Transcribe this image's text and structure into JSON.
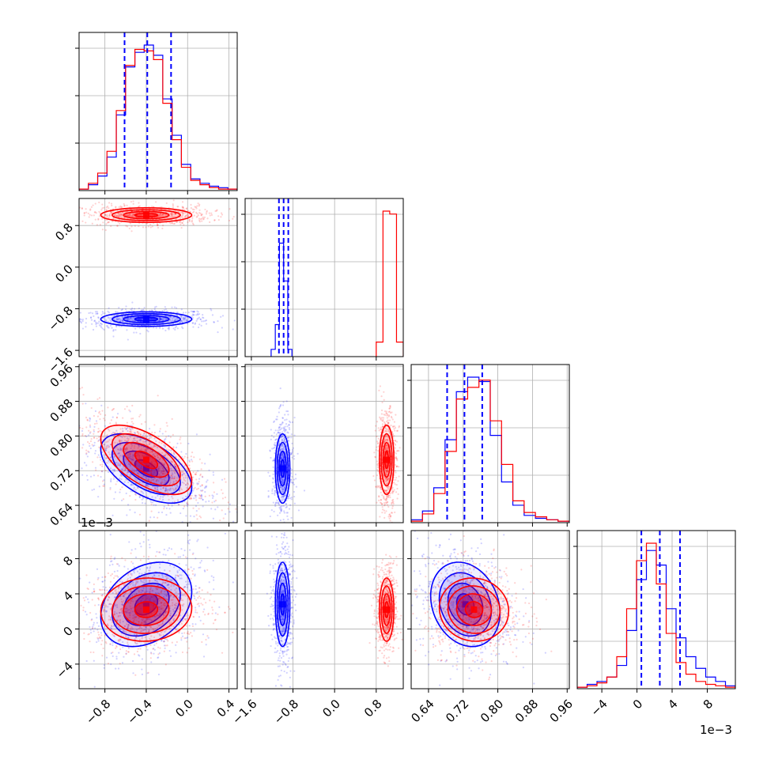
{
  "chart_data": {
    "type": "corner",
    "colors": {
      "series_a": "#0000ff",
      "series_b": "#ff0000"
    },
    "grid": true,
    "exponent_label": "1e−3",
    "params": [
      {
        "ticks": [
          -0.8,
          -0.4,
          0.0,
          0.4
        ],
        "tick_labels": [
          "−0.8",
          "−0.4",
          "0.0",
          "0.4"
        ],
        "range": [
          -1.05,
          0.48
        ]
      },
      {
        "ticks": [
          -1.6,
          -0.8,
          0.0,
          0.8
        ],
        "tick_labels": [
          "−1.6",
          "−0.8",
          "0.0",
          "0.8"
        ],
        "range": [
          -1.72,
          1.32
        ]
      },
      {
        "ticks": [
          0.64,
          0.72,
          0.8,
          0.88,
          0.96
        ],
        "tick_labels": [
          "0.64",
          "0.72",
          "0.80",
          "0.88",
          "0.96"
        ],
        "range": [
          0.6,
          0.965
        ]
      },
      {
        "ticks": [
          -4,
          0,
          4,
          8
        ],
        "tick_labels": [
          "−4",
          "0",
          "4",
          "8"
        ],
        "range": [
          -6.8,
          11.2
        ]
      }
    ],
    "quantiles": {
      "series_a": [
        [
          -0.61,
          -0.39,
          -0.16
        ],
        [
          -1.07,
          -0.98,
          -0.89
        ],
        [
          0.683,
          0.723,
          0.764
        ],
        [
          0.5,
          2.6,
          4.9
        ]
      ]
    },
    "series": [
      {
        "key": "series_a",
        "means": [
          -0.4,
          -1.0,
          0.725,
          2.8
        ],
        "sds": [
          0.22,
          0.07,
          0.04,
          2.4
        ],
        "hist": [
          [
            0.01,
            0.04,
            0.1,
            0.23,
            0.52,
            0.85,
            0.95,
            1.0,
            0.93,
            0.63,
            0.38,
            0.18,
            0.08,
            0.05,
            0.03,
            0.02,
            0.01
          ],
          [
            0.05,
            0.22,
            0.78,
            0.52,
            0.05
          ],
          [
            0.02,
            0.08,
            0.24,
            0.57,
            0.9,
            1.0,
            0.97,
            0.6,
            0.28,
            0.12,
            0.05,
            0.03,
            0.02,
            0.01
          ],
          [
            0.01,
            0.03,
            0.05,
            0.08,
            0.16,
            0.4,
            0.75,
            0.95,
            0.85,
            0.55,
            0.35,
            0.22,
            0.14,
            0.08,
            0.05,
            0.02
          ]
        ]
      },
      {
        "key": "series_b",
        "means": [
          -0.4,
          1.0,
          0.745,
          2.2
        ],
        "sds": [
          0.22,
          0.07,
          0.04,
          1.8
        ],
        "hist": [
          [
            0.01,
            0.05,
            0.12,
            0.27,
            0.55,
            0.86,
            0.97,
            0.96,
            0.9,
            0.6,
            0.35,
            0.16,
            0.07,
            0.04,
            0.02,
            0.01,
            0.01
          ],
          [
            0.1,
            1.0,
            0.98,
            0.1
          ],
          [
            0.01,
            0.06,
            0.2,
            0.49,
            0.85,
            0.93,
            0.98,
            0.7,
            0.4,
            0.15,
            0.07,
            0.04,
            0.02,
            0.01
          ],
          [
            0.01,
            0.02,
            0.04,
            0.08,
            0.22,
            0.55,
            0.88,
            1.0,
            0.72,
            0.38,
            0.18,
            0.1,
            0.05,
            0.03,
            0.02,
            0.01
          ]
        ],
        "hist_ranges": [
          null,
          [
            0.8,
            1.32
          ],
          null,
          null
        ]
      }
    ],
    "correlations": {
      "series_a": {
        "2_0": -0.55,
        "3_0": 0.3,
        "3_2": -0.2,
        "2_1": 0.0,
        "1_0": 0.0,
        "3_1": 0.0
      },
      "series_b": {
        "2_0": -0.6,
        "3_0": 0.05,
        "3_2": -0.05,
        "2_1": 0.0,
        "1_0": 0.0,
        "3_1": 0.0
      }
    }
  }
}
